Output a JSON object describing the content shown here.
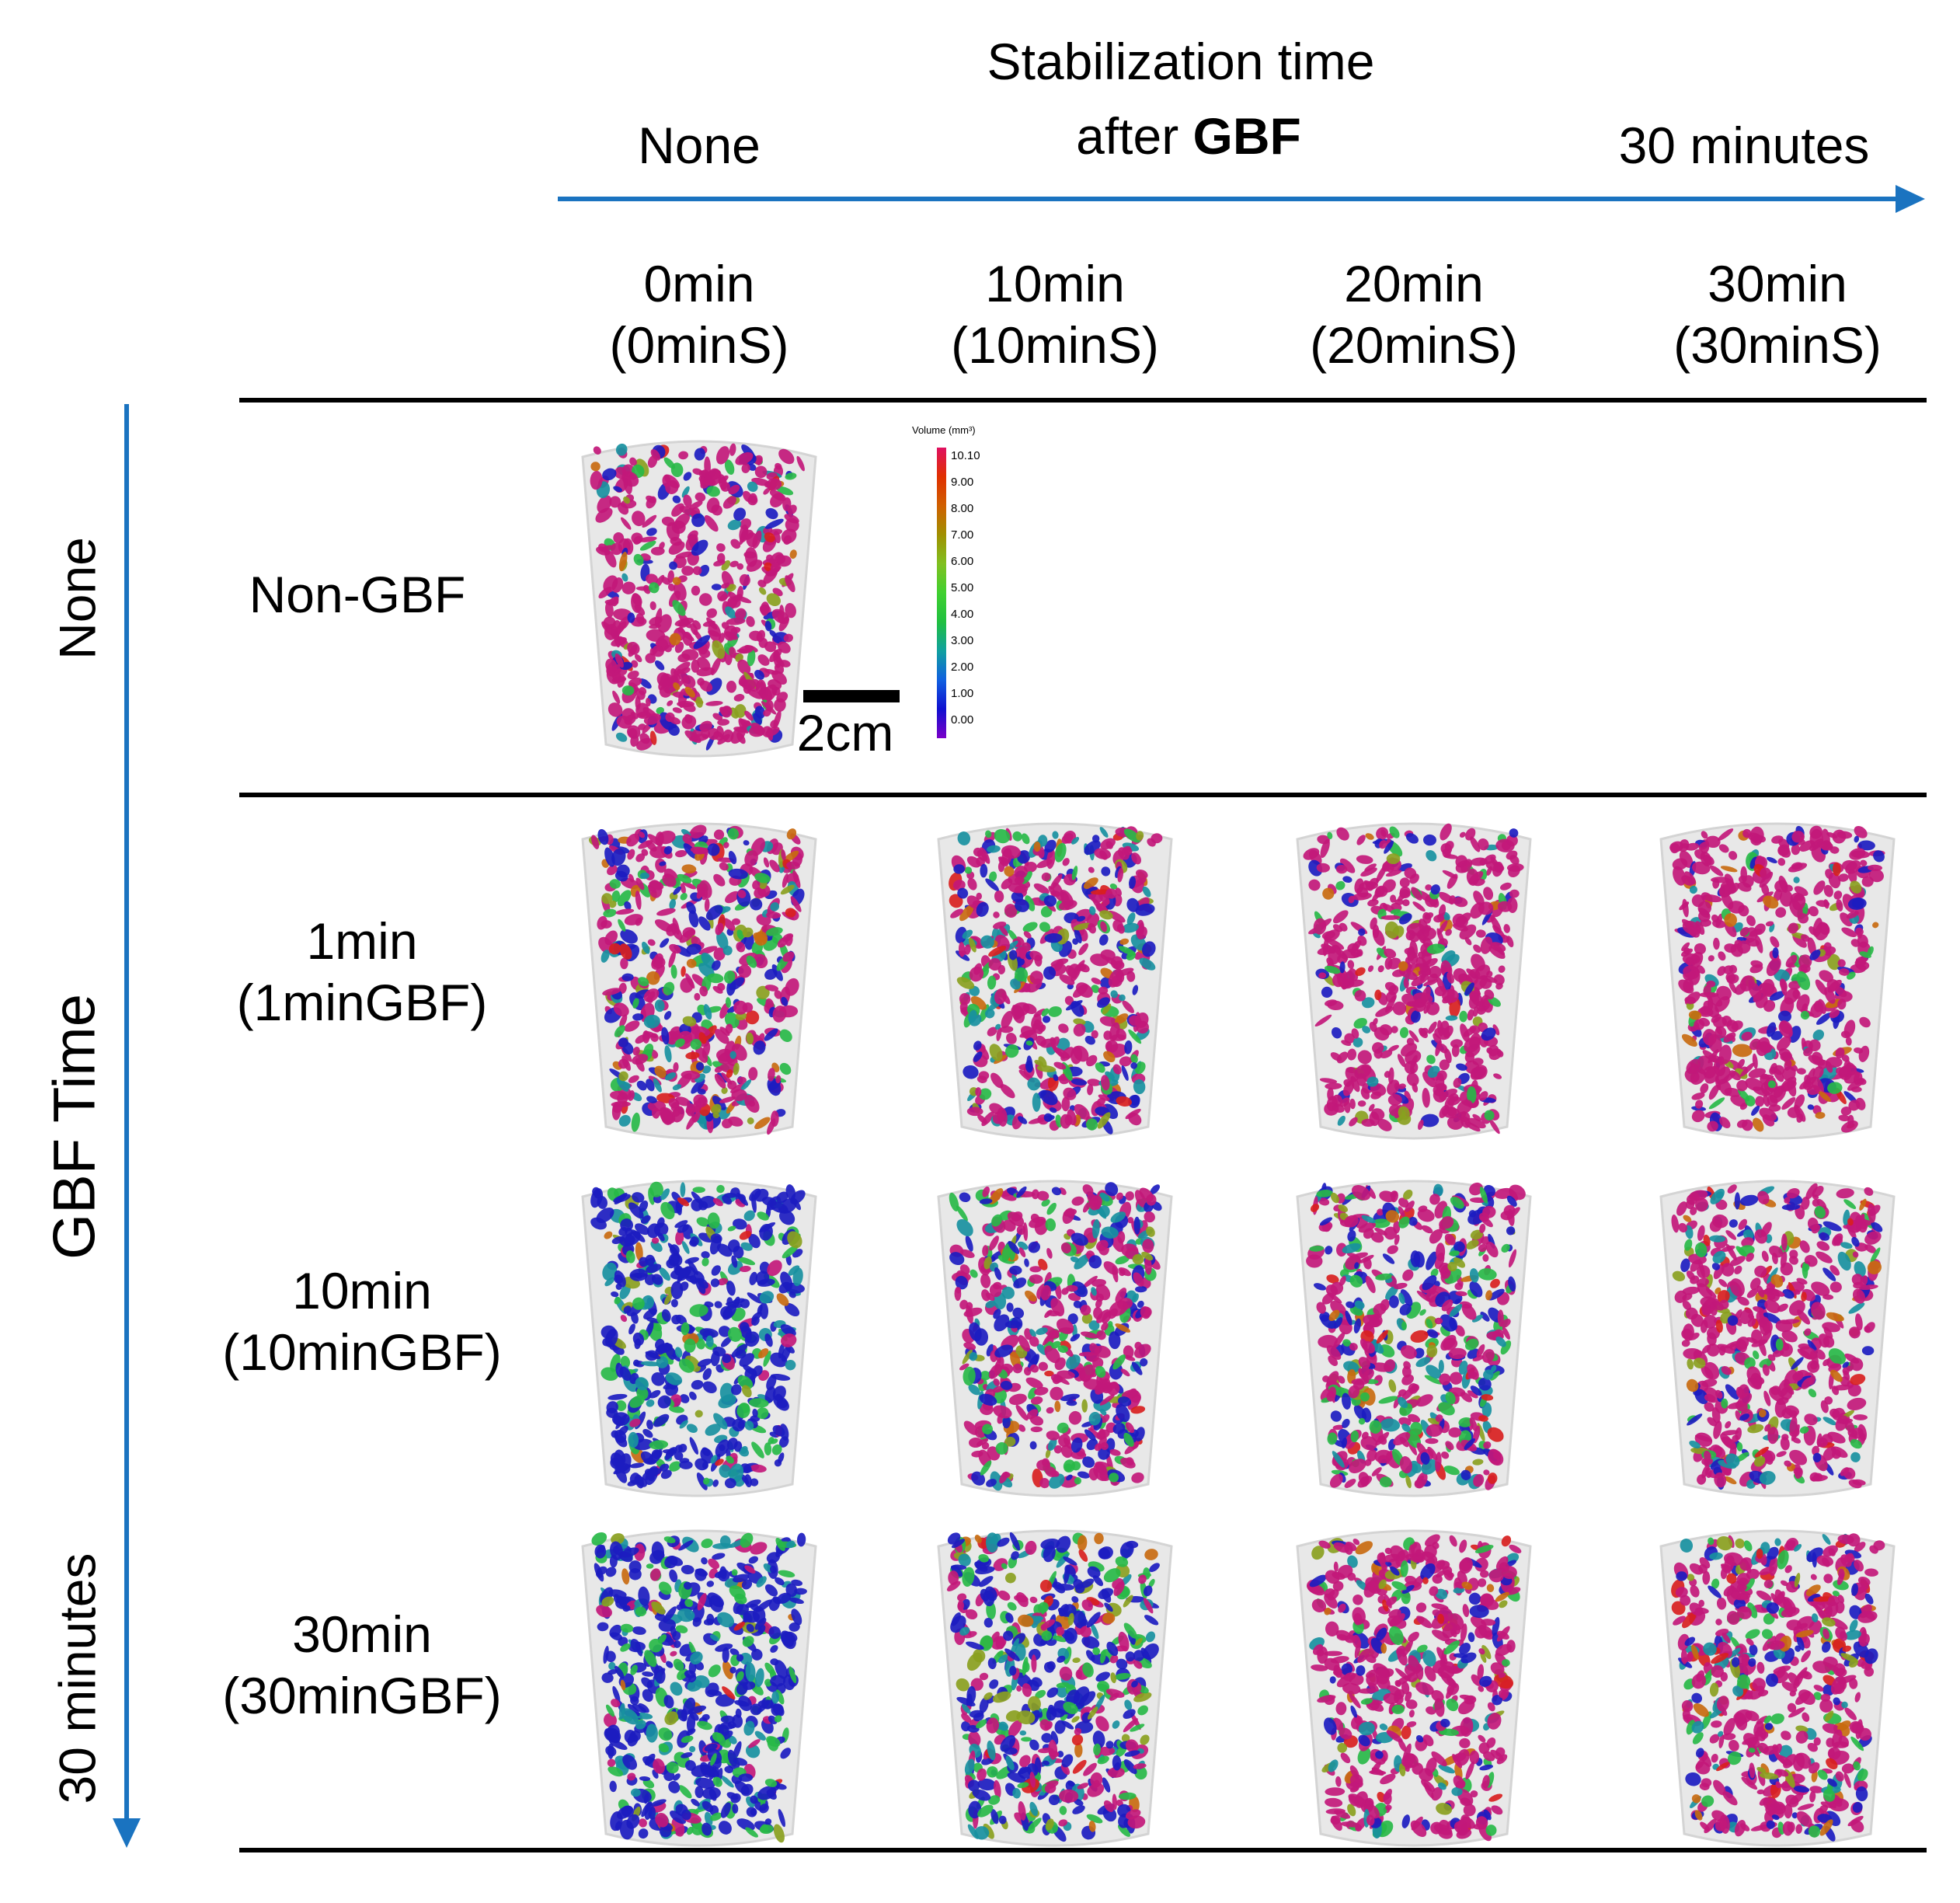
{
  "top_axis": {
    "title_line1": "Stabilization  time",
    "title_line2_prefix": "after ",
    "title_line2_bold": "GBF",
    "start_label": "None",
    "end_label": "30 minutes",
    "arrow_color": "#1a73c0"
  },
  "left_axis": {
    "title": "GBF Time",
    "start_label": "None",
    "end_label": "30 minutes",
    "arrow_color": "#1a73c0"
  },
  "columns": [
    {
      "time": "0min",
      "code": "(0minS)"
    },
    {
      "time": "10min",
      "code": "(10minS)"
    },
    {
      "time": "20min",
      "code": "(20minS)"
    },
    {
      "time": "30min",
      "code": "(30minS)"
    }
  ],
  "rows": [
    {
      "line1": "Non-GBF",
      "line2": ""
    },
    {
      "line1": "1min",
      "line2": "(1minGBF)"
    },
    {
      "line1": "10min",
      "line2": "(10minGBF)"
    },
    {
      "line1": "30min",
      "line2": "(30minGBF)"
    }
  ],
  "scale_bar": {
    "label": "2cm"
  },
  "colorbar": {
    "title": "Volume (mm³)",
    "ticks": [
      "10.10",
      "9.00",
      "8.00",
      "7.00",
      "6.00",
      "5.00",
      "4.00",
      "3.00",
      "2.00",
      "1.00",
      "0.00"
    ],
    "gradient": [
      "#7a00c8",
      "#1010d0",
      "#1060e0",
      "#10a0a0",
      "#20c040",
      "#40d030",
      "#80c020",
      "#a09000",
      "#d06000",
      "#e03000",
      "#e01060"
    ]
  },
  "palette": {
    "magenta": "#c2187a",
    "blue": "#1c1cc0",
    "teal": "#1890a0",
    "green": "#28b848",
    "olive": "#8aa020",
    "orange": "#c86a10",
    "red": "#d82020"
  }
}
